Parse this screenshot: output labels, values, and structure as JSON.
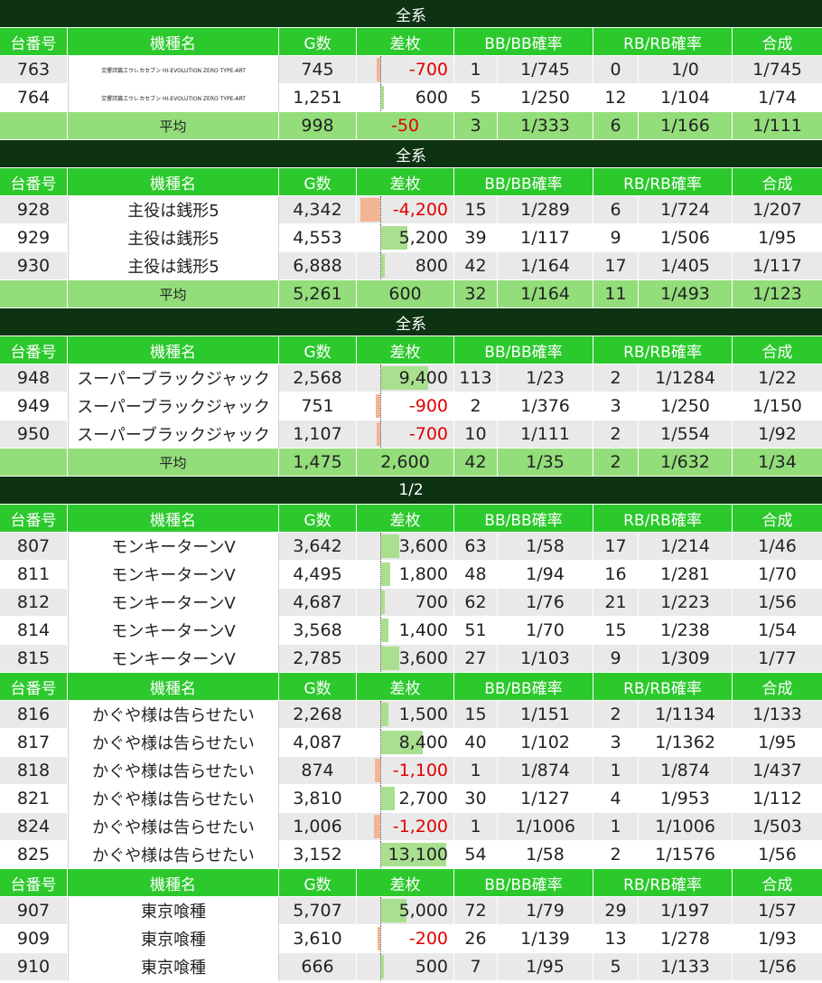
{
  "headers": {
    "no": "台番号",
    "name": "機種名",
    "g": "G数",
    "diff": "差枚",
    "bb": "BB/BB確率",
    "rb": "RB/RB確率",
    "gou": "合成"
  },
  "colors": {
    "title_bg": "#0e3313",
    "header_bg": "#2cc92c",
    "avg_bg": "#93dd7a",
    "pos_bar": "#a9e08f",
    "neg_bar": "#f3b493",
    "neg_text": "#e00000"
  },
  "sections": [
    {
      "title": "全系",
      "groups": [
        {
          "rows": [
            {
              "no": "763",
              "name": "交響詩篇エウレカセブン HI-EVOLUTION ZERO TYPE-ART",
              "g": "745",
              "diff": "-700",
              "diff_value": -700,
              "bb": "1",
              "bbr": "1/745",
              "rb": "0",
              "rbr": "1/0",
              "gou": "1/745"
            },
            {
              "no": "764",
              "name": "交響詩篇エウレカセブン HI-EVOLUTION ZERO TYPE-ART",
              "g": "1,251",
              "diff": "600",
              "diff_value": 600,
              "bb": "5",
              "bbr": "1/250",
              "rb": "12",
              "rbr": "1/104",
              "gou": "1/74"
            }
          ],
          "avg": {
            "label": "平均",
            "g": "998",
            "diff": "-50",
            "diff_value": -50,
            "bb": "3",
            "bbr": "1/333",
            "rb": "6",
            "rbr": "1/166",
            "gou": "1/111"
          }
        }
      ]
    },
    {
      "title": "全系",
      "groups": [
        {
          "rows": [
            {
              "no": "928",
              "name": "主役は銭形5",
              "g": "4,342",
              "diff": "-4,200",
              "diff_value": -4200,
              "bb": "15",
              "bbr": "1/289",
              "rb": "6",
              "rbr": "1/724",
              "gou": "1/207"
            },
            {
              "no": "929",
              "name": "主役は銭形5",
              "g": "4,553",
              "diff": "5,200",
              "diff_value": 5200,
              "bb": "39",
              "bbr": "1/117",
              "rb": "9",
              "rbr": "1/506",
              "gou": "1/95"
            },
            {
              "no": "930",
              "name": "主役は銭形5",
              "g": "6,888",
              "diff": "800",
              "diff_value": 800,
              "bb": "42",
              "bbr": "1/164",
              "rb": "17",
              "rbr": "1/405",
              "gou": "1/117"
            }
          ],
          "avg": {
            "label": "平均",
            "g": "5,261",
            "diff": "600",
            "diff_value": 600,
            "bb": "32",
            "bbr": "1/164",
            "rb": "11",
            "rbr": "1/493",
            "gou": "1/123"
          }
        }
      ]
    },
    {
      "title": "全系",
      "groups": [
        {
          "rows": [
            {
              "no": "948",
              "name": "スーパーブラックジャック",
              "g": "2,568",
              "diff": "9,400",
              "diff_value": 9400,
              "bb": "113",
              "bbr": "1/23",
              "rb": "2",
              "rbr": "1/1284",
              "gou": "1/22"
            },
            {
              "no": "949",
              "name": "スーパーブラックジャック",
              "g": "751",
              "diff": "-900",
              "diff_value": -900,
              "bb": "2",
              "bbr": "1/376",
              "rb": "3",
              "rbr": "1/250",
              "gou": "1/150"
            },
            {
              "no": "950",
              "name": "スーパーブラックジャック",
              "g": "1,107",
              "diff": "-700",
              "diff_value": -700,
              "bb": "10",
              "bbr": "1/111",
              "rb": "2",
              "rbr": "1/554",
              "gou": "1/92"
            }
          ],
          "avg": {
            "label": "平均",
            "g": "1,475",
            "diff": "2,600",
            "diff_value": 2600,
            "bb": "42",
            "bbr": "1/35",
            "rb": "2",
            "rbr": "1/632",
            "gou": "1/34"
          }
        }
      ]
    },
    {
      "title": "1/2",
      "groups": [
        {
          "rows": [
            {
              "no": "807",
              "name": "モンキーターンV",
              "g": "3,642",
              "diff": "3,600",
              "diff_value": 3600,
              "bb": "63",
              "bbr": "1/58",
              "rb": "17",
              "rbr": "1/214",
              "gou": "1/46"
            },
            {
              "no": "811",
              "name": "モンキーターンV",
              "g": "4,495",
              "diff": "1,800",
              "diff_value": 1800,
              "bb": "48",
              "bbr": "1/94",
              "rb": "16",
              "rbr": "1/281",
              "gou": "1/70"
            },
            {
              "no": "812",
              "name": "モンキーターンV",
              "g": "4,687",
              "diff": "700",
              "diff_value": 700,
              "bb": "62",
              "bbr": "1/76",
              "rb": "21",
              "rbr": "1/223",
              "gou": "1/56"
            },
            {
              "no": "814",
              "name": "モンキーターンV",
              "g": "3,568",
              "diff": "1,400",
              "diff_value": 1400,
              "bb": "51",
              "bbr": "1/70",
              "rb": "15",
              "rbr": "1/238",
              "gou": "1/54"
            },
            {
              "no": "815",
              "name": "モンキーターンV",
              "g": "2,785",
              "diff": "3,600",
              "diff_value": 3600,
              "bb": "27",
              "bbr": "1/103",
              "rb": "9",
              "rbr": "1/309",
              "gou": "1/77"
            }
          ]
        },
        {
          "rows": [
            {
              "no": "816",
              "name": "かぐや様は告らせたい",
              "g": "2,268",
              "diff": "1,500",
              "diff_value": 1500,
              "bb": "15",
              "bbr": "1/151",
              "rb": "2",
              "rbr": "1/1134",
              "gou": "1/133"
            },
            {
              "no": "817",
              "name": "かぐや様は告らせたい",
              "g": "4,087",
              "diff": "8,400",
              "diff_value": 8400,
              "bb": "40",
              "bbr": "1/102",
              "rb": "3",
              "rbr": "1/1362",
              "gou": "1/95"
            },
            {
              "no": "818",
              "name": "かぐや様は告らせたい",
              "g": "874",
              "diff": "-1,100",
              "diff_value": -1100,
              "bb": "1",
              "bbr": "1/874",
              "rb": "1",
              "rbr": "1/874",
              "gou": "1/437"
            },
            {
              "no": "821",
              "name": "かぐや様は告らせたい",
              "g": "3,810",
              "diff": "2,700",
              "diff_value": 2700,
              "bb": "30",
              "bbr": "1/127",
              "rb": "4",
              "rbr": "1/953",
              "gou": "1/112"
            },
            {
              "no": "824",
              "name": "かぐや様は告らせたい",
              "g": "1,006",
              "diff": "-1,200",
              "diff_value": -1200,
              "bb": "1",
              "bbr": "1/1006",
              "rb": "1",
              "rbr": "1/1006",
              "gou": "1/503"
            },
            {
              "no": "825",
              "name": "かぐや様は告らせたい",
              "g": "3,152",
              "diff": "13,100",
              "diff_value": 13100,
              "bb": "54",
              "bbr": "1/58",
              "rb": "2",
              "rbr": "1/1576",
              "gou": "1/56"
            }
          ]
        },
        {
          "rows": [
            {
              "no": "907",
              "name": "東京喰種",
              "g": "5,707",
              "diff": "5,000",
              "diff_value": 5000,
              "bb": "72",
              "bbr": "1/79",
              "rb": "29",
              "rbr": "1/197",
              "gou": "1/57"
            },
            {
              "no": "909",
              "name": "東京喰種",
              "g": "3,610",
              "diff": "-200",
              "diff_value": -200,
              "bb": "26",
              "bbr": "1/139",
              "rb": "13",
              "rbr": "1/278",
              "gou": "1/93"
            },
            {
              "no": "910",
              "name": "東京喰種",
              "g": "666",
              "diff": "500",
              "diff_value": 500,
              "bb": "7",
              "bbr": "1/95",
              "rb": "5",
              "rbr": "1/133",
              "gou": "1/56"
            }
          ]
        }
      ]
    }
  ]
}
